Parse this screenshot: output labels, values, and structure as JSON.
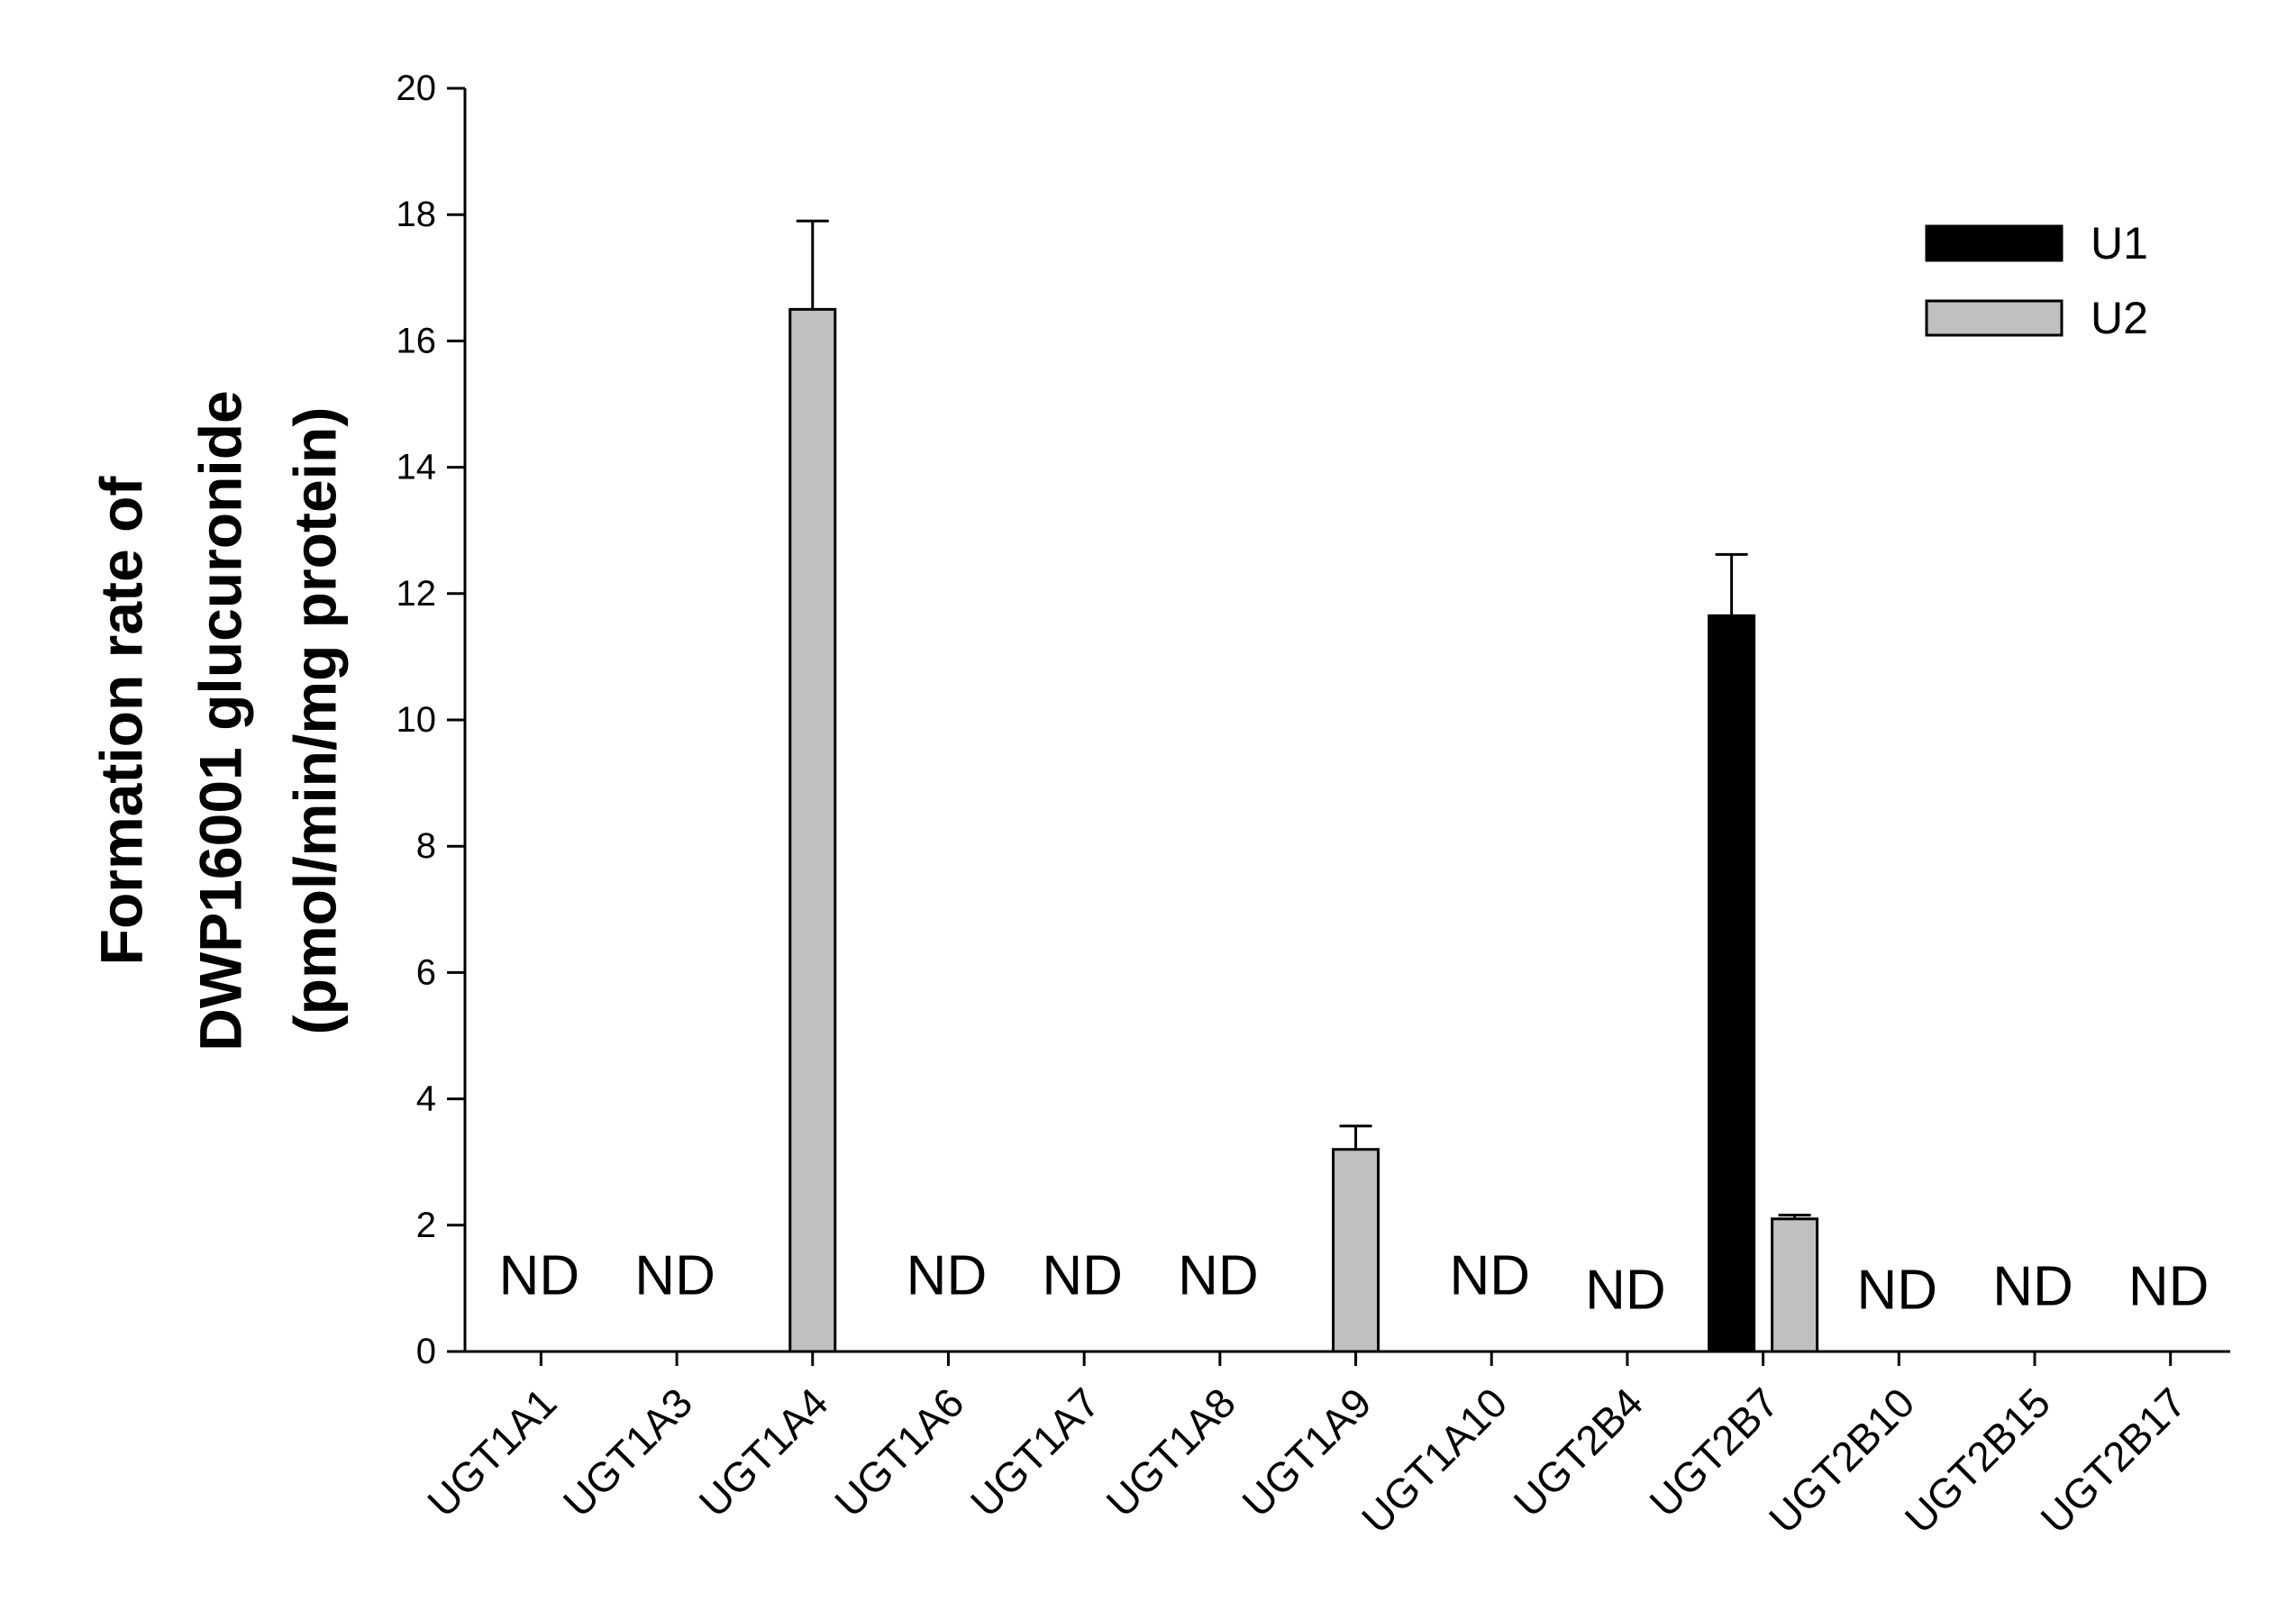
{
  "chart_data": {
    "type": "bar",
    "ylabel_lines": [
      "Formation rate of",
      "DWP16001 glucuronide",
      "(pmol/min/mg protein)"
    ],
    "xlabel": "",
    "ylim": [
      0,
      20
    ],
    "yticks": [
      0,
      2,
      4,
      6,
      8,
      10,
      12,
      14,
      16,
      18,
      20
    ],
    "categories": [
      "UGT1A1",
      "UGT1A3",
      "UGT1A4",
      "UGT1A6",
      "UGT1A7",
      "UGT1A8",
      "UGT1A9",
      "UGT1A10",
      "UGT2B4",
      "UGT2B7",
      "UGT2B10",
      "UGT2B15",
      "UGT2B17"
    ],
    "series": [
      {
        "name": "U1",
        "color": "#000000",
        "values": [
          null,
          null,
          null,
          null,
          null,
          null,
          null,
          null,
          null,
          11.65,
          null,
          null,
          null
        ],
        "errors": [
          null,
          null,
          null,
          null,
          null,
          null,
          null,
          null,
          null,
          0.97,
          null,
          null,
          null
        ]
      },
      {
        "name": "U2",
        "color": "#c0c0c0",
        "values": [
          null,
          null,
          16.5,
          null,
          null,
          null,
          3.2,
          null,
          null,
          2.1,
          null,
          null,
          null
        ],
        "errors": [
          null,
          null,
          1.4,
          null,
          null,
          null,
          0.37,
          null,
          null,
          0.06,
          null,
          null,
          null
        ]
      }
    ],
    "nd_label": "ND",
    "nd_categories": [
      "UGT1A1",
      "UGT1A3",
      "UGT1A6",
      "UGT1A7",
      "UGT1A8",
      "UGT1A10",
      "UGT2B4",
      "UGT2B10",
      "UGT2B15",
      "UGT2B17"
    ],
    "legend_position": "top-right",
    "grid": false
  }
}
